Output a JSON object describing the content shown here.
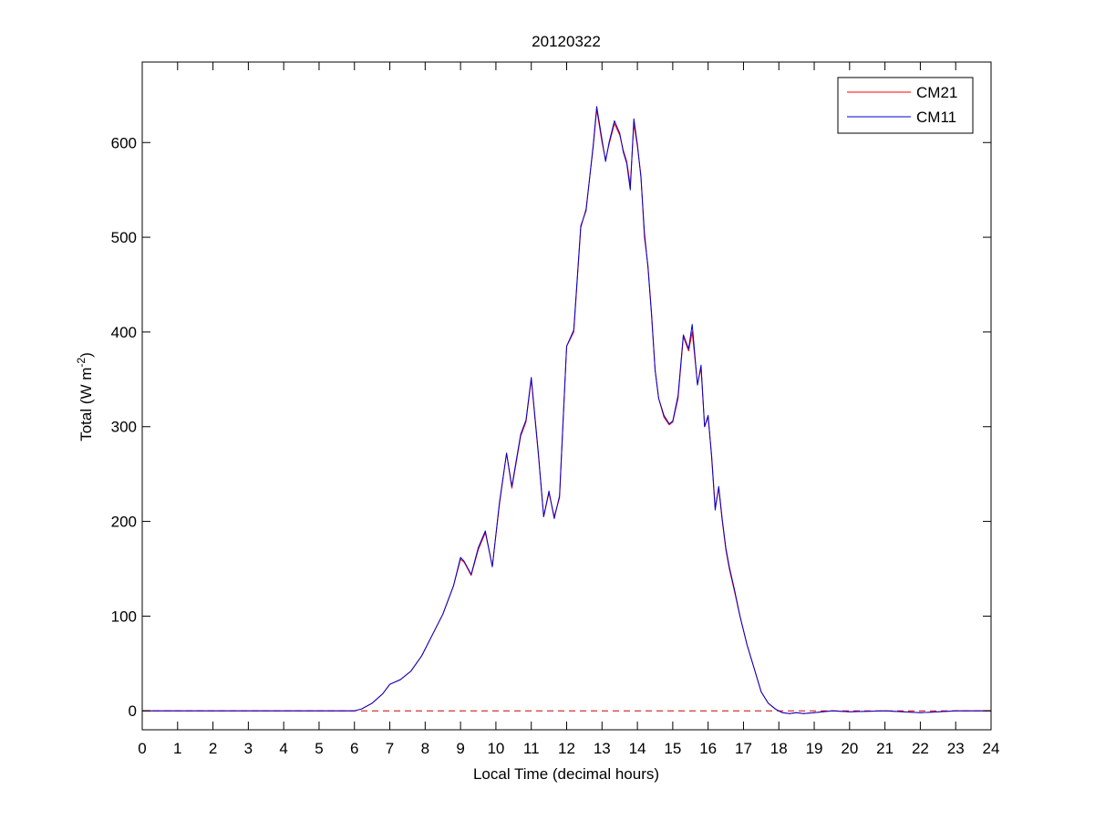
{
  "chart_data": {
    "type": "line",
    "title": "20120322",
    "xlabel": "Local Time (decimal hours)",
    "ylabel": {
      "main": "Total (W m",
      "superscript": "-2",
      "close": ")"
    },
    "xlim": [
      0,
      24
    ],
    "ylim": [
      -20,
      685
    ],
    "xticks": [
      0,
      1,
      2,
      3,
      4,
      5,
      6,
      7,
      8,
      9,
      10,
      11,
      12,
      13,
      14,
      15,
      16,
      17,
      18,
      19,
      20,
      21,
      22,
      23,
      24
    ],
    "yticks": [
      0,
      100,
      200,
      300,
      400,
      500,
      600
    ],
    "grid": false,
    "legend_position": "top-right",
    "reference_line": {
      "y": 0,
      "color": "#cc0000",
      "style": "dashed"
    },
    "series": [
      {
        "name": "CM21",
        "color": "#ff0000",
        "x": [
          0,
          3,
          6,
          6.2,
          6.5,
          6.8,
          7.0,
          7.3,
          7.6,
          7.9,
          8.2,
          8.5,
          8.8,
          9.0,
          9.1,
          9.3,
          9.5,
          9.7,
          9.9,
          10.1,
          10.3,
          10.45,
          10.7,
          10.85,
          11.0,
          11.2,
          11.35,
          11.5,
          11.65,
          11.8,
          12.0,
          12.2,
          12.4,
          12.55,
          12.75,
          12.85,
          13.0,
          13.1,
          13.2,
          13.35,
          13.5,
          13.6,
          13.7,
          13.8,
          13.9,
          14.0,
          14.1,
          14.2,
          14.3,
          14.4,
          14.5,
          14.6,
          14.75,
          14.9,
          15.0,
          15.15,
          15.3,
          15.45,
          15.55,
          15.7,
          15.8,
          15.9,
          16.0,
          16.1,
          16.2,
          16.3,
          16.4,
          16.5,
          16.6,
          16.75,
          16.9,
          17.1,
          17.3,
          17.5,
          17.7,
          17.9,
          18.1,
          18.3,
          18.5,
          18.7,
          19.0,
          19.5,
          20.0,
          21.0,
          22.0,
          23.0,
          24.0
        ],
        "values": [
          0,
          0,
          0,
          2,
          8,
          18,
          28,
          33,
          42,
          58,
          80,
          102,
          132,
          160,
          157,
          143,
          170,
          188,
          153,
          218,
          272,
          235,
          290,
          305,
          350,
          270,
          205,
          230,
          205,
          225,
          385,
          400,
          510,
          530,
          595,
          635,
          600,
          582,
          598,
          620,
          608,
          592,
          580,
          555,
          620,
          596,
          565,
          500,
          470,
          420,
          360,
          330,
          310,
          302,
          305,
          330,
          395,
          380,
          400,
          345,
          362,
          300,
          310,
          270,
          215,
          235,
          200,
          170,
          150,
          125,
          100,
          70,
          45,
          20,
          8,
          2,
          -2,
          -3,
          -2,
          -3,
          -2,
          0,
          -1,
          0,
          -2,
          0,
          0
        ]
      },
      {
        "name": "CM11",
        "color": "#0000cc",
        "x": [
          0,
          3,
          6,
          6.2,
          6.5,
          6.8,
          7.0,
          7.3,
          7.6,
          7.9,
          8.2,
          8.5,
          8.8,
          9.0,
          9.1,
          9.3,
          9.5,
          9.7,
          9.9,
          10.1,
          10.3,
          10.45,
          10.7,
          10.85,
          11.0,
          11.2,
          11.35,
          11.5,
          11.65,
          11.8,
          12.0,
          12.2,
          12.4,
          12.55,
          12.75,
          12.85,
          13.0,
          13.1,
          13.2,
          13.35,
          13.5,
          13.6,
          13.7,
          13.8,
          13.9,
          14.0,
          14.1,
          14.2,
          14.3,
          14.4,
          14.5,
          14.6,
          14.75,
          14.9,
          15.0,
          15.15,
          15.3,
          15.45,
          15.55,
          15.7,
          15.8,
          15.9,
          16.0,
          16.1,
          16.2,
          16.3,
          16.4,
          16.5,
          16.6,
          16.75,
          16.9,
          17.1,
          17.3,
          17.5,
          17.7,
          17.9,
          18.1,
          18.3,
          18.5,
          18.7,
          19.0,
          19.5,
          20.0,
          21.0,
          22.0,
          23.0,
          24.0
        ],
        "values": [
          0,
          0,
          0,
          2,
          8,
          18,
          28,
          33,
          42,
          58,
          80,
          102,
          132,
          162,
          158,
          144,
          172,
          190,
          152,
          220,
          272,
          237,
          292,
          307,
          352,
          272,
          205,
          232,
          203,
          227,
          385,
          402,
          512,
          528,
          597,
          638,
          603,
          580,
          600,
          623,
          610,
          590,
          578,
          550,
          625,
          598,
          563,
          505,
          468,
          418,
          360,
          330,
          312,
          303,
          306,
          333,
          397,
          382,
          408,
          344,
          365,
          300,
          312,
          268,
          212,
          237,
          202,
          172,
          152,
          127,
          100,
          70,
          45,
          20,
          8,
          2,
          -2,
          -3,
          -2,
          -3,
          -2,
          0,
          -1,
          0,
          -2,
          0,
          0
        ]
      }
    ]
  }
}
